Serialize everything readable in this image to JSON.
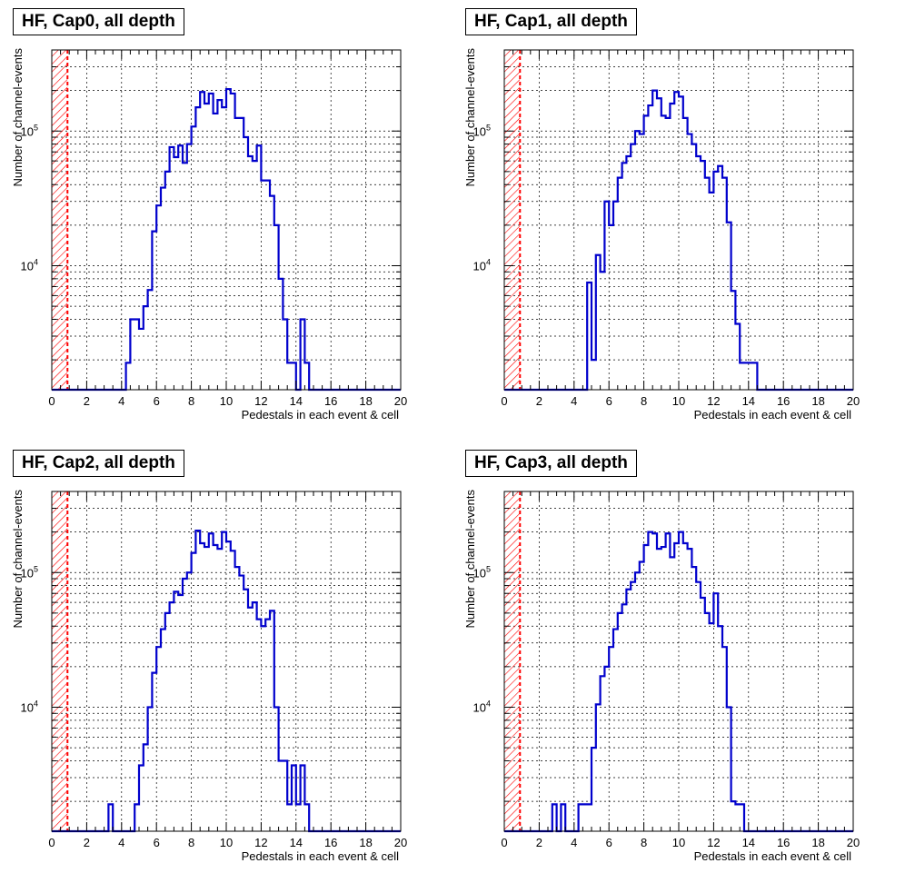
{
  "chart_data": [
    {
      "type": "step-histogram",
      "title": "HF, Cap0, all depth",
      "xlabel": "Pedestals in each event & cell",
      "ylabel": "Number of channel-events",
      "xlim": [
        0,
        20
      ],
      "ylim": [
        1200,
        400000
      ],
      "yscale": "log",
      "grid": true,
      "x_ticks": [
        "0",
        "2",
        "4",
        "6",
        "8",
        "10",
        "12",
        "14",
        "16",
        "18",
        "20"
      ],
      "y_ticks": [
        "10^4",
        "10^5"
      ],
      "cut_region": {
        "x": [
          0,
          0.9
        ],
        "color": "#ff0000",
        "style": "hatched, dashed edge"
      },
      "line_color": "#0000cc",
      "bin_width": 0.25,
      "bins": [
        [
          4.25,
          1900
        ],
        [
          4.5,
          4000
        ],
        [
          4.75,
          4000
        ],
        [
          5.0,
          3400
        ],
        [
          5.25,
          5000
        ],
        [
          5.5,
          6600
        ],
        [
          5.75,
          18000
        ],
        [
          6.0,
          28000
        ],
        [
          6.25,
          38000
        ],
        [
          6.5,
          50000
        ],
        [
          6.75,
          76000
        ],
        [
          7.0,
          64000
        ],
        [
          7.25,
          78000
        ],
        [
          7.5,
          58000
        ],
        [
          7.75,
          80000
        ],
        [
          8.0,
          108000
        ],
        [
          8.25,
          150000
        ],
        [
          8.5,
          195000
        ],
        [
          8.75,
          160000
        ],
        [
          9.0,
          190000
        ],
        [
          9.25,
          135000
        ],
        [
          9.5,
          170000
        ],
        [
          9.75,
          150000
        ],
        [
          10.0,
          205000
        ],
        [
          10.25,
          190000
        ],
        [
          10.5,
          125000
        ],
        [
          10.75,
          125000
        ],
        [
          11.0,
          90000
        ],
        [
          11.25,
          65000
        ],
        [
          11.5,
          60000
        ],
        [
          11.75,
          78000
        ],
        [
          12.0,
          43000
        ],
        [
          12.25,
          43000
        ],
        [
          12.5,
          33000
        ],
        [
          12.75,
          20000
        ],
        [
          13.0,
          8000
        ],
        [
          13.25,
          4000
        ],
        [
          13.5,
          1900
        ],
        [
          13.75,
          1900
        ],
        [
          14.25,
          4000
        ],
        [
          14.5,
          1900
        ]
      ]
    },
    {
      "type": "step-histogram",
      "title": "HF, Cap1, all depth",
      "xlabel": "Pedestals in each event & cell",
      "ylabel": "Number of channel-events",
      "xlim": [
        0,
        20
      ],
      "ylim": [
        1200,
        400000
      ],
      "yscale": "log",
      "grid": true,
      "x_ticks": [
        "0",
        "2",
        "4",
        "6",
        "8",
        "10",
        "12",
        "14",
        "16",
        "18",
        "20"
      ],
      "y_ticks": [
        "10^4",
        "10^5"
      ],
      "cut_region": {
        "x": [
          0,
          0.9
        ],
        "color": "#ff0000",
        "style": "hatched, dashed edge"
      },
      "line_color": "#0000cc",
      "bin_width": 0.25,
      "bins": [
        [
          4.75,
          7500
        ],
        [
          5.0,
          2000
        ],
        [
          5.25,
          12000
        ],
        [
          5.5,
          9000
        ],
        [
          5.75,
          30000
        ],
        [
          6.0,
          20000
        ],
        [
          6.25,
          30000
        ],
        [
          6.5,
          45000
        ],
        [
          6.75,
          58000
        ],
        [
          7.0,
          65000
        ],
        [
          7.25,
          80000
        ],
        [
          7.5,
          100000
        ],
        [
          7.75,
          95000
        ],
        [
          8.0,
          130000
        ],
        [
          8.25,
          155000
        ],
        [
          8.5,
          200000
        ],
        [
          8.75,
          175000
        ],
        [
          9.0,
          130000
        ],
        [
          9.25,
          125000
        ],
        [
          9.5,
          160000
        ],
        [
          9.75,
          195000
        ],
        [
          10.0,
          180000
        ],
        [
          10.25,
          125000
        ],
        [
          10.5,
          95000
        ],
        [
          10.75,
          80000
        ],
        [
          11.0,
          65000
        ],
        [
          11.25,
          60000
        ],
        [
          11.5,
          45000
        ],
        [
          11.75,
          35000
        ],
        [
          12.0,
          50000
        ],
        [
          12.25,
          55000
        ],
        [
          12.5,
          45000
        ],
        [
          12.75,
          21000
        ],
        [
          13.0,
          6500
        ],
        [
          13.25,
          3700
        ],
        [
          13.5,
          1900
        ],
        [
          13.75,
          1900
        ],
        [
          14.0,
          1900
        ],
        [
          14.25,
          1900
        ]
      ]
    },
    {
      "type": "step-histogram",
      "title": "HF, Cap2, all depth",
      "xlabel": "Pedestals in each event & cell",
      "ylabel": "Number of channel-events",
      "xlim": [
        0,
        20
      ],
      "ylim": [
        1200,
        400000
      ],
      "yscale": "log",
      "grid": true,
      "x_ticks": [
        "0",
        "2",
        "4",
        "6",
        "8",
        "10",
        "12",
        "14",
        "16",
        "18",
        "20"
      ],
      "y_ticks": [
        "10^4",
        "10^5"
      ],
      "cut_region": {
        "x": [
          0,
          0.9
        ],
        "color": "#ff0000",
        "style": "hatched, dashed edge"
      },
      "line_color": "#0000cc",
      "bin_width": 0.25,
      "bins": [
        [
          3.25,
          1900
        ],
        [
          4.75,
          1900
        ],
        [
          5.0,
          3700
        ],
        [
          5.25,
          5300
        ],
        [
          5.5,
          10000
        ],
        [
          5.75,
          18000
        ],
        [
          6.0,
          28000
        ],
        [
          6.25,
          38000
        ],
        [
          6.5,
          50000
        ],
        [
          6.75,
          60000
        ],
        [
          7.0,
          72000
        ],
        [
          7.25,
          68000
        ],
        [
          7.5,
          90000
        ],
        [
          7.75,
          100000
        ],
        [
          8.0,
          140000
        ],
        [
          8.25,
          205000
        ],
        [
          8.5,
          165000
        ],
        [
          8.75,
          155000
        ],
        [
          9.0,
          195000
        ],
        [
          9.25,
          160000
        ],
        [
          9.5,
          150000
        ],
        [
          9.75,
          200000
        ],
        [
          10.0,
          170000
        ],
        [
          10.25,
          145000
        ],
        [
          10.5,
          110000
        ],
        [
          10.75,
          95000
        ],
        [
          11.0,
          75000
        ],
        [
          11.25,
          55000
        ],
        [
          11.5,
          60000
        ],
        [
          11.75,
          45000
        ],
        [
          12.0,
          40000
        ],
        [
          12.25,
          45000
        ],
        [
          12.5,
          52000
        ],
        [
          12.75,
          10000
        ],
        [
          13.0,
          4000
        ],
        [
          13.25,
          4000
        ],
        [
          13.5,
          1900
        ],
        [
          13.75,
          3700
        ],
        [
          14.0,
          1900
        ],
        [
          14.25,
          3700
        ],
        [
          14.5,
          1900
        ]
      ]
    },
    {
      "type": "step-histogram",
      "title": "HF, Cap3, all depth",
      "xlabel": "Pedestals in each event & cell",
      "ylabel": "Number of channel-events",
      "xlim": [
        0,
        20
      ],
      "ylim": [
        1200,
        400000
      ],
      "yscale": "log",
      "grid": true,
      "x_ticks": [
        "0",
        "2",
        "4",
        "6",
        "8",
        "10",
        "12",
        "14",
        "16",
        "18",
        "20"
      ],
      "y_ticks": [
        "10^4",
        "10^5"
      ],
      "cut_region": {
        "x": [
          0,
          0.9
        ],
        "color": "#ff0000",
        "style": "hatched, dashed edge"
      },
      "line_color": "#0000cc",
      "bin_width": 0.25,
      "bins": [
        [
          2.75,
          1900
        ],
        [
          3.25,
          1900
        ],
        [
          4.25,
          1900
        ],
        [
          4.5,
          1900
        ],
        [
          4.75,
          1900
        ],
        [
          5.0,
          5000
        ],
        [
          5.25,
          10500
        ],
        [
          5.5,
          17000
        ],
        [
          5.75,
          20000
        ],
        [
          6.0,
          28000
        ],
        [
          6.25,
          38000
        ],
        [
          6.5,
          50000
        ],
        [
          6.75,
          58000
        ],
        [
          7.0,
          75000
        ],
        [
          7.25,
          85000
        ],
        [
          7.5,
          100000
        ],
        [
          7.75,
          120000
        ],
        [
          8.0,
          160000
        ],
        [
          8.25,
          200000
        ],
        [
          8.5,
          195000
        ],
        [
          8.75,
          150000
        ],
        [
          9.0,
          155000
        ],
        [
          9.25,
          195000
        ],
        [
          9.5,
          130000
        ],
        [
          9.75,
          165000
        ],
        [
          10.0,
          200000
        ],
        [
          10.25,
          165000
        ],
        [
          10.5,
          150000
        ],
        [
          10.75,
          110000
        ],
        [
          11.0,
          85000
        ],
        [
          11.25,
          65000
        ],
        [
          11.5,
          50000
        ],
        [
          11.75,
          42000
        ],
        [
          12.0,
          70000
        ],
        [
          12.25,
          40000
        ],
        [
          12.5,
          28000
        ],
        [
          12.75,
          10000
        ],
        [
          13.0,
          2000
        ],
        [
          13.25,
          1900
        ],
        [
          13.5,
          1900
        ]
      ]
    }
  ]
}
